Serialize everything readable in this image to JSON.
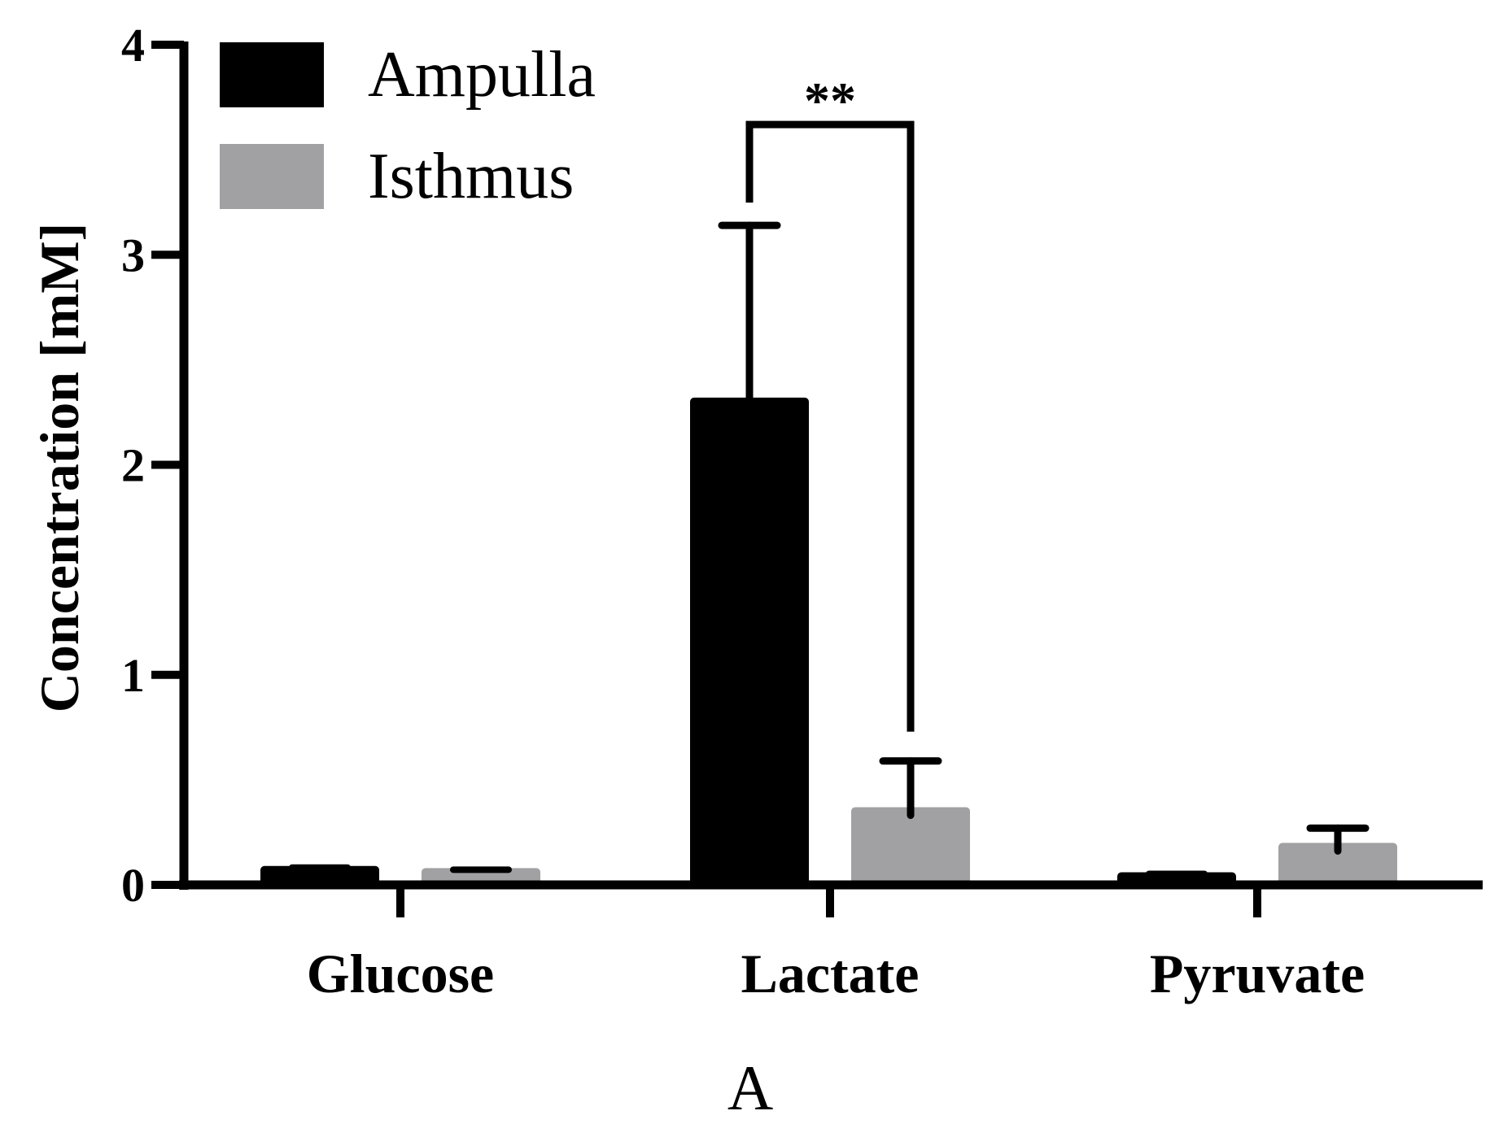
{
  "chart_data": {
    "type": "bar",
    "categories": [
      "Glucose",
      "Lactate",
      "Pyruvate"
    ],
    "series": [
      {
        "name": "Ampulla",
        "color": "#000000",
        "values": [
          0.09,
          2.32,
          0.06
        ],
        "errors": [
          0.0,
          0.82,
          0.0
        ]
      },
      {
        "name": "Isthmus",
        "color": "#a1a1a4",
        "values": [
          0.08,
          0.37,
          0.2
        ],
        "errors": [
          0.0,
          0.22,
          0.07
        ]
      }
    ],
    "ylabel": "Concentration [mM]",
    "xlabel": "A",
    "ylim": [
      0,
      4
    ],
    "yticks": [
      0,
      1,
      2,
      3,
      4
    ],
    "legend": "top-left",
    "grid": false,
    "significance": {
      "category": "Lactate",
      "text": "**",
      "level": 3.62
    }
  }
}
